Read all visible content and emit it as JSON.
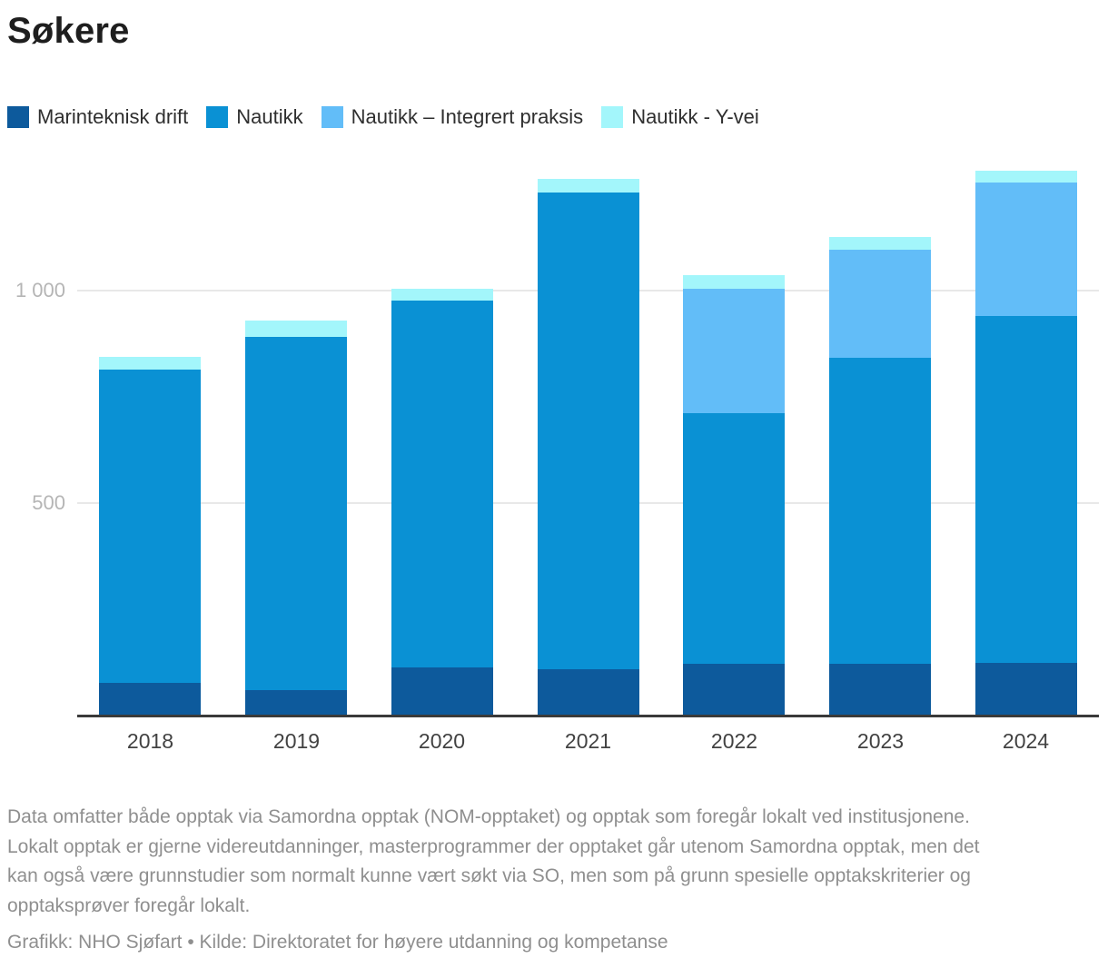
{
  "title": "Søkere",
  "chart_data": {
    "type": "bar",
    "stacked": true,
    "title": "Søkere",
    "xlabel": "",
    "ylabel": "",
    "categories": [
      "2018",
      "2019",
      "2020",
      "2021",
      "2022",
      "2023",
      "2024"
    ],
    "series": [
      {
        "name": "Marinteknisk drift",
        "color": "#0d5a9c",
        "values": [
          77,
          60,
          113,
          109,
          122,
          122,
          124
        ]
      },
      {
        "name": "Nautikk",
        "color": "#0a91d4",
        "values": [
          736,
          830,
          863,
          1121,
          589,
          719,
          815
        ]
      },
      {
        "name": "Nautikk – Integrert praksis",
        "color": "#62bdf8",
        "values": [
          0,
          0,
          0,
          0,
          292,
          254,
          313
        ]
      },
      {
        "name": "Nautikk - Y-vei",
        "color": "#a3f6fb",
        "values": [
          30,
          38,
          27,
          31,
          32,
          30,
          27
        ]
      }
    ],
    "totals": [
      843,
      928,
      1003,
      1261,
      1035,
      1125,
      1279
    ],
    "yticks": [
      {
        "value": 500,
        "label": "500"
      },
      {
        "value": 1000,
        "label": "1 000"
      }
    ],
    "ylim": [
      0,
      1320
    ],
    "grid": true,
    "legend_position": "top"
  },
  "footer": {
    "description": "Data omfatter både opptak via Samordna opptak (NOM-opptaket) og opptak som foregår lokalt ved institusjonene. Lokalt opptak er gjerne videreutdanninger, masterprogrammer der opptaket går utenom Samordna opptak, men det kan også være grunnstudier som normalt kunne vært søkt via SO, men som på grunn spesielle opptakskriterier og opptaksprøver foregår lokalt.",
    "credit": "Grafikk: NHO Sjøfart • Kilde: Direktoratet for høyere utdanning og kompetanse"
  }
}
